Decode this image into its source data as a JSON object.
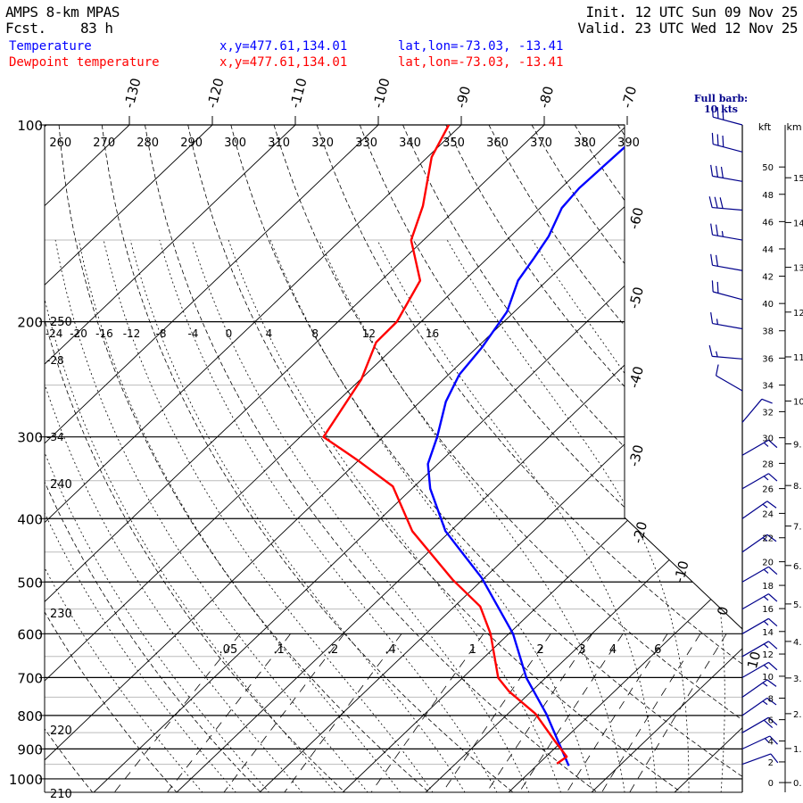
{
  "header": {
    "model": "AMPS 8-km MPAS",
    "fcst_label": "Fcst.",
    "fcst_value": "83 h",
    "init": "Init. 12 UTC Sun 09 Nov 25",
    "valid": "Valid. 23 UTC Wed 12 Nov 25"
  },
  "legend": [
    {
      "name": "Temperature",
      "xy": "x,y=477.61,134.01",
      "latlon": "lat,lon=-73.03, -13.41",
      "color": "#0000ff"
    },
    {
      "name": "Dewpoint temperature",
      "xy": "x,y=477.61,134.01",
      "latlon": "lat,lon=-73.03, -13.41",
      "color": "#ff0000"
    }
  ],
  "barb_key": {
    "line1": "Full barb:",
    "line2": "10 kts",
    "color": "#00008b"
  },
  "height_axis": {
    "kft_title": "kft",
    "km_title": "km",
    "kft_labels": [
      "0",
      "2",
      "4",
      "6",
      "8",
      "10",
      "12",
      "14",
      "16",
      "18",
      "20",
      "22",
      "24",
      "26",
      "28",
      "30",
      "32",
      "34",
      "36",
      "38",
      "40",
      "42",
      "44",
      "46",
      "48",
      "50"
    ],
    "km_labels": [
      "0.",
      "1.",
      "2.",
      "3.",
      "4.",
      "5.",
      "6.",
      "7.",
      "8.",
      "9.",
      "10.",
      "11.",
      "12.",
      "13.",
      "14.",
      "15."
    ]
  },
  "chart_data": {
    "type": "line",
    "subtype": "skew-T log-p",
    "pressure_levels": [
      100,
      200,
      300,
      400,
      500,
      600,
      700,
      800,
      900,
      1000
    ],
    "pressure_labels": [
      "100",
      "200",
      "300",
      "400",
      "500",
      "600",
      "700",
      "800",
      "900",
      "1000"
    ],
    "ylim_hpa": [
      100,
      1000
    ],
    "isotherm_top_labels": [
      "-130",
      "-120",
      "-110",
      "-100",
      "-90",
      "-80",
      "-70"
    ],
    "isotherm_side_labels": [
      "-60",
      "-50",
      "-40",
      "-30",
      "-20",
      "-10",
      "0",
      "10"
    ],
    "dry_adiabat_top_labels": [
      "260",
      "270",
      "280",
      "290",
      "300",
      "310",
      "320",
      "330",
      "340",
      "350",
      "360",
      "370",
      "380",
      "390"
    ],
    "dry_adiabat_left_labels": [
      "250",
      "240",
      "230",
      "220",
      "210"
    ],
    "moist_adiabat_labels": [
      "-24",
      "-20",
      "-16",
      "-12",
      "-8",
      "-4",
      "0",
      "4",
      "8",
      "12",
      "16"
    ],
    "moist_adiabat_side_labels": [
      "-28",
      "-34"
    ],
    "mixing_ratio_labels": [
      ".05",
      ".1",
      ".2",
      ".4",
      "1",
      "2",
      "3",
      "4",
      "6"
    ],
    "series": [
      {
        "name": "Temperature",
        "color": "#0000ff",
        "points": [
          [
            100,
            -67.6
          ],
          [
            108,
            -67.5
          ],
          [
            125,
            -67.8
          ],
          [
            134,
            -67.4
          ],
          [
            148,
            -65.4
          ],
          [
            160,
            -64.4
          ],
          [
            173,
            -63.5
          ],
          [
            193,
            -60.9
          ],
          [
            219,
            -59.4
          ],
          [
            241,
            -58.7
          ],
          [
            265,
            -56.9
          ],
          [
            300,
            -53.5
          ],
          [
            330,
            -51.2
          ],
          [
            360,
            -47.8
          ],
          [
            418,
            -40.6
          ],
          [
            493,
            -30.3
          ],
          [
            600,
            -19.5
          ],
          [
            701,
            -12.3
          ],
          [
            795,
            -5.4
          ],
          [
            902,
            1.0
          ],
          [
            955,
            3.9
          ]
        ]
      },
      {
        "name": "Dewpoint temperature",
        "color": "#ff0000",
        "points": [
          [
            100,
            -91.5
          ],
          [
            112,
            -89.5
          ],
          [
            133,
            -84.4
          ],
          [
            150,
            -81.5
          ],
          [
            173,
            -75.3
          ],
          [
            200,
            -72.9
          ],
          [
            215,
            -72.8
          ],
          [
            245,
            -69.9
          ],
          [
            300,
            -67.2
          ],
          [
            325,
            -60.3
          ],
          [
            357,
            -52.6
          ],
          [
            418,
            -44.6
          ],
          [
            496,
            -33.6
          ],
          [
            545,
            -26.9
          ],
          [
            600,
            -22.2
          ],
          [
            701,
            -15.7
          ],
          [
            735,
            -12.7
          ],
          [
            795,
            -6.7
          ],
          [
            874,
            -1.0
          ],
          [
            925,
            2.5
          ],
          [
            948,
            2.2
          ]
        ]
      }
    ],
    "wind_barbs_kt": [
      {
        "p": 100,
        "speed": 30,
        "dir": 285
      },
      {
        "p": 110,
        "speed": 30,
        "dir": 285
      },
      {
        "p": 122,
        "speed": 30,
        "dir": 280
      },
      {
        "p": 135,
        "speed": 30,
        "dir": 275
      },
      {
        "p": 150,
        "speed": 25,
        "dir": 280
      },
      {
        "p": 167,
        "speed": 20,
        "dir": 280
      },
      {
        "p": 185,
        "speed": 20,
        "dir": 285
      },
      {
        "p": 205,
        "speed": 15,
        "dir": 280
      },
      {
        "p": 228,
        "speed": 15,
        "dir": 275
      },
      {
        "p": 255,
        "speed": 10,
        "dir": 300
      },
      {
        "p": 285,
        "speed": 10,
        "dir": 40
      },
      {
        "p": 320,
        "speed": 15,
        "dir": 60
      },
      {
        "p": 360,
        "speed": 15,
        "dir": 60
      },
      {
        "p": 400,
        "speed": 15,
        "dir": 55
      },
      {
        "p": 450,
        "speed": 15,
        "dir": 55
      },
      {
        "p": 500,
        "speed": 15,
        "dir": 60
      },
      {
        "p": 550,
        "speed": 15,
        "dir": 60
      },
      {
        "p": 600,
        "speed": 15,
        "dir": 60
      },
      {
        "p": 650,
        "speed": 15,
        "dir": 60
      },
      {
        "p": 700,
        "speed": 15,
        "dir": 60
      },
      {
        "p": 750,
        "speed": 15,
        "dir": 55
      },
      {
        "p": 800,
        "speed": 15,
        "dir": 55
      },
      {
        "p": 850,
        "speed": 20,
        "dir": 60
      },
      {
        "p": 900,
        "speed": 15,
        "dir": 65
      },
      {
        "p": 950,
        "speed": 10,
        "dir": 70
      }
    ]
  }
}
